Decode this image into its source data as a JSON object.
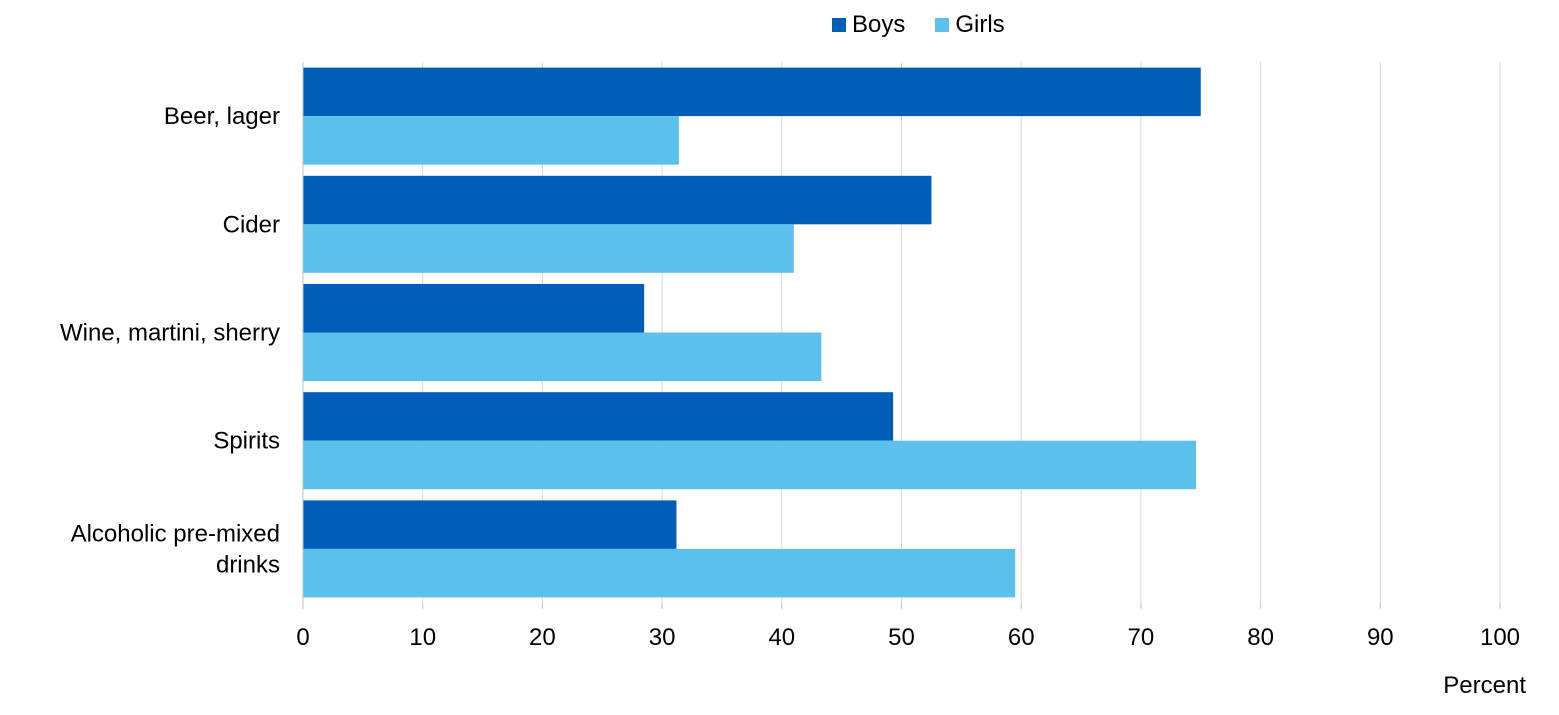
{
  "colors": {
    "boys": "#005EB8",
    "girls": "#5BC0EB",
    "grid": "#D9D9D9",
    "axis": "#BFBFBF"
  },
  "legend": {
    "boys": "Boys",
    "girls": "Girls"
  },
  "chart_data": {
    "type": "bar",
    "orientation": "horizontal",
    "title": "",
    "xlabel": "Percent",
    "ylabel": "",
    "xlim": [
      0,
      100
    ],
    "xticks": [
      0,
      10,
      20,
      30,
      40,
      50,
      60,
      70,
      80,
      90,
      100
    ],
    "grid": true,
    "legend_position": "top",
    "categories": [
      [
        "Beer, lager"
      ],
      [
        "Cider"
      ],
      [
        "Wine, martini, sherry"
      ],
      [
        "Spirits"
      ],
      [
        "Alcoholic pre-mixed",
        "drinks"
      ]
    ],
    "series": [
      {
        "name": "Boys",
        "values": [
          75,
          52.5,
          28.5,
          49.3,
          31.2
        ]
      },
      {
        "name": "Girls",
        "values": [
          31.4,
          41,
          43.3,
          74.6,
          59.5
        ]
      }
    ]
  }
}
